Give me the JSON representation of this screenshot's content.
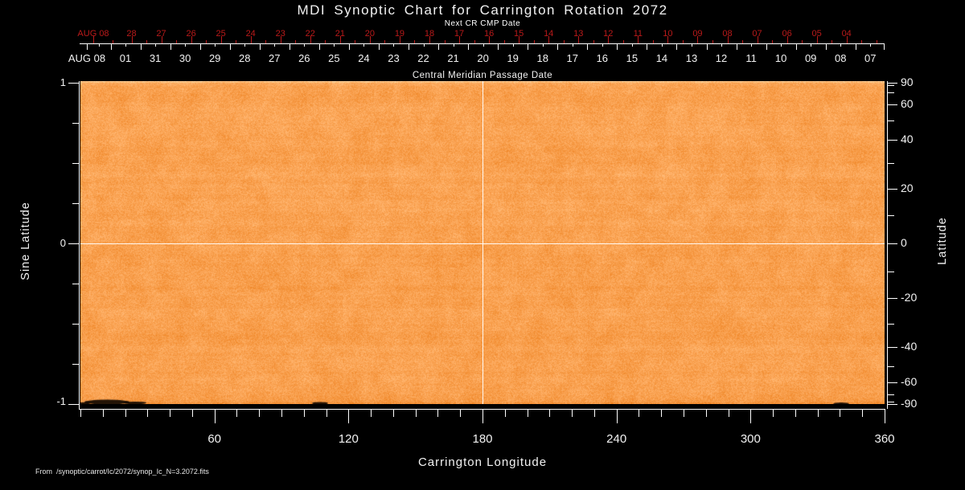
{
  "title": "MDI Synoptic Chart for Carrington Rotation 2072",
  "colors": {
    "background": "#000000",
    "foreground": "#ffffff",
    "red_axis": "#bb1a1a",
    "image_base_orange": "#f8a156"
  },
  "top_axis": {
    "red_title": "Next CR CMP Date",
    "red_month": "AUG 08",
    "red_days": [
      "28",
      "27",
      "26",
      "25",
      "24",
      "23",
      "22",
      "21",
      "20",
      "19",
      "18",
      "17",
      "16",
      "15",
      "14",
      "13",
      "12",
      "11",
      "10",
      "09",
      "08",
      "07",
      "06",
      "05",
      "04"
    ],
    "white_month": "AUG 08",
    "white_days": [
      "01",
      "31",
      "30",
      "29",
      "28",
      "27",
      "26",
      "25",
      "24",
      "23",
      "22",
      "21",
      "20",
      "19",
      "18",
      "17",
      "16",
      "15",
      "14",
      "13",
      "12",
      "11",
      "10",
      "09",
      "08",
      "07"
    ],
    "white_title": "Central Meridian Passage Date"
  },
  "left_axis": {
    "title": "Sine Latitude",
    "ticks": [
      "1",
      "0",
      "-1"
    ]
  },
  "right_axis": {
    "title": "Latitude",
    "ticks": [
      "90",
      "60",
      "40",
      "20",
      "0",
      "-20",
      "-40",
      "-60",
      "-90"
    ]
  },
  "bottom_axis": {
    "title": "Carrington Longitude",
    "ticks": [
      "60",
      "120",
      "180",
      "240",
      "300",
      "360"
    ]
  },
  "footer": "From  /synoptic/carrot/Ic/2072/synop_Ic_N=3.2072.fits",
  "chart_data": {
    "type": "heatmap",
    "title": "MDI Synoptic Chart for Carrington Rotation 2072",
    "xlabel": "Carrington Longitude",
    "ylabel_left": "Sine Latitude",
    "ylabel_right": "Latitude",
    "x_range": [
      0,
      360
    ],
    "x_ticks": [
      60,
      120,
      180,
      240,
      300,
      360
    ],
    "y_scale": "sine of latitude",
    "y_range_sine": [
      -1,
      1
    ],
    "left_axis_ticks_sine": [
      1,
      0,
      -1
    ],
    "right_axis_ticks_latitude_deg": [
      90,
      60,
      40,
      20,
      0,
      -20,
      -40,
      -60,
      -90
    ],
    "top_axis_white": {
      "title": "Central Meridian Passage Date",
      "month_label": "AUG 08",
      "day_labels": [
        "01",
        "31",
        "30",
        "29",
        "28",
        "27",
        "26",
        "25",
        "24",
        "23",
        "22",
        "21",
        "20",
        "19",
        "18",
        "17",
        "16",
        "15",
        "14",
        "13",
        "12",
        "11",
        "10",
        "09",
        "08",
        "07"
      ]
    },
    "top_axis_red": {
      "title": "Next CR CMP Date",
      "month_label": "AUG 08",
      "day_labels": [
        "28",
        "27",
        "26",
        "25",
        "24",
        "23",
        "22",
        "21",
        "20",
        "19",
        "18",
        "17",
        "16",
        "15",
        "14",
        "13",
        "12",
        "11",
        "10",
        "09",
        "08",
        "07",
        "06",
        "05",
        "04"
      ]
    },
    "reference_lines": {
      "vertical_at_longitude": 180,
      "horizontal_at_latitude": 0
    },
    "image_description": "Continuum-intensity synoptic map rendered as nearly uniform orange speckle noise over the full longitude/latitude range; thin brighter band at north (top) edge; small dark sunspot smudges along the south (bottom) edge",
    "dark_features_longitude_deg_approx": [
      [
        3,
        20
      ],
      [
        105,
        110
      ],
      [
        337,
        344
      ]
    ],
    "legend": "none",
    "grid": "crosshair only (longitude 180, latitude 0)"
  }
}
